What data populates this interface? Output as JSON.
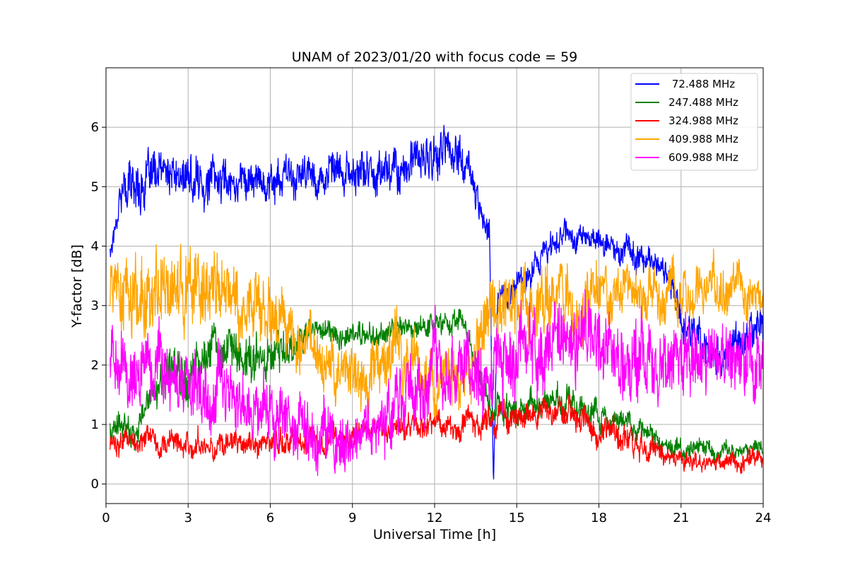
{
  "chart_data": {
    "type": "line",
    "title": "UNAM of 2023/01/20 with focus code = 59",
    "xlabel": "Universal Time [h]",
    "ylabel": "Y-factor [dB]",
    "xlim": [
      0,
      24
    ],
    "ylim": [
      -0.33,
      7.0
    ],
    "xticks": [
      0,
      3,
      6,
      9,
      12,
      15,
      18,
      21,
      24
    ],
    "yticks": [
      0,
      1,
      2,
      3,
      4,
      5,
      6
    ],
    "grid": true,
    "legend_position": "top-right",
    "series": [
      {
        "name": "72.488 MHz",
        "legend_label": " 72.488 MHz",
        "color": "#0000ff",
        "x": [
          0.15,
          0.3,
          0.5,
          0.8,
          1.5,
          2.0,
          3.0,
          4.0,
          5.0,
          6.0,
          7.0,
          8.0,
          9.0,
          10.0,
          11.0,
          12.0,
          12.5,
          13.0,
          13.2,
          13.5,
          13.8,
          14.0,
          14.15,
          14.3,
          16.8,
          17.0,
          17.5,
          18.0,
          18.5,
          19.0,
          19.5,
          20.0,
          20.5,
          21.0,
          21.5,
          22.0,
          22.5,
          23.0,
          23.5,
          24.0
        ],
        "y": [
          3.9,
          4.3,
          4.9,
          5.0,
          5.1,
          5.2,
          5.1,
          5.1,
          5.15,
          5.1,
          5.15,
          5.2,
          5.2,
          5.3,
          5.35,
          5.5,
          5.6,
          5.5,
          5.3,
          4.9,
          4.6,
          4.3,
          0.0,
          3.0,
          4.3,
          4.2,
          4.15,
          4.1,
          4.0,
          3.9,
          3.8,
          3.7,
          3.6,
          2.9,
          2.5,
          2.2,
          2.1,
          2.2,
          2.5,
          2.8
        ],
        "noise": [
          0.3,
          0.3,
          0.4,
          0.5,
          0.45,
          0.45,
          0.45,
          0.45,
          0.4,
          0.4,
          0.4,
          0.4,
          0.4,
          0.45,
          0.45,
          0.5,
          0.5,
          0.5,
          0.4,
          0.35,
          0.35,
          0.3,
          0.0,
          0.3,
          0.3,
          0.3,
          0.25,
          0.25,
          0.3,
          0.3,
          0.3,
          0.25,
          0.3,
          0.4,
          0.4,
          0.4,
          0.35,
          0.4,
          0.4,
          0.4
        ]
      },
      {
        "name": "247.488 MHz",
        "legend_label": "247.488 MHz",
        "color": "#008000",
        "x": [
          0.15,
          1.0,
          2.0,
          3.0,
          4.0,
          5.0,
          6.0,
          7.0,
          7.5,
          8.0,
          9.0,
          10.0,
          11.0,
          12.0,
          13.0,
          14.0,
          15.0,
          16.0,
          17.0,
          18.0,
          19.0,
          20.0,
          21.0,
          22.0,
          23.0,
          24.0
        ],
        "y": [
          0.9,
          0.9,
          1.8,
          2.0,
          2.3,
          2.1,
          2.2,
          2.4,
          2.55,
          2.55,
          2.5,
          2.5,
          2.6,
          2.7,
          2.75,
          1.2,
          1.3,
          1.4,
          1.35,
          1.1,
          1.0,
          0.8,
          0.6,
          0.55,
          0.55,
          0.6
        ],
        "noise": [
          0.3,
          0.3,
          0.5,
          0.5,
          0.5,
          0.5,
          0.5,
          0.35,
          0.25,
          0.25,
          0.25,
          0.25,
          0.25,
          0.25,
          0.25,
          0.3,
          0.3,
          0.3,
          0.3,
          0.25,
          0.25,
          0.2,
          0.2,
          0.2,
          0.15,
          0.15
        ]
      },
      {
        "name": "324.988 MHz",
        "legend_label": "324.988 MHz",
        "color": "#ff0000",
        "x": [
          0.15,
          1.0,
          2.0,
          3.0,
          4.0,
          5.0,
          6.0,
          7.0,
          8.0,
          9.0,
          10.0,
          11.0,
          12.0,
          13.0,
          14.0,
          15.0,
          16.0,
          17.0,
          18.0,
          19.0,
          20.0,
          21.0,
          22.0,
          23.0,
          24.0
        ],
        "y": [
          0.7,
          0.7,
          0.7,
          0.7,
          0.65,
          0.65,
          0.7,
          0.75,
          0.8,
          0.85,
          0.9,
          0.95,
          1.0,
          1.0,
          1.1,
          1.15,
          1.2,
          1.15,
          0.9,
          0.75,
          0.55,
          0.4,
          0.35,
          0.35,
          0.4
        ],
        "noise": [
          0.25,
          0.25,
          0.25,
          0.25,
          0.25,
          0.25,
          0.25,
          0.25,
          0.25,
          0.25,
          0.25,
          0.25,
          0.25,
          0.25,
          0.3,
          0.3,
          0.3,
          0.3,
          0.3,
          0.3,
          0.25,
          0.2,
          0.2,
          0.2,
          0.2
        ]
      },
      {
        "name": "409.988 MHz",
        "legend_label": "409.988 MHz",
        "color": "#ffa500",
        "x": [
          0.15,
          1.0,
          2.0,
          3.0,
          4.0,
          5.0,
          6.0,
          6.5,
          7.0,
          8.0,
          9.0,
          9.5,
          10.0,
          10.5,
          11.0,
          12.0,
          13.0,
          14.0,
          15.0,
          16.0,
          17.0,
          18.0,
          19.0,
          20.0,
          21.0,
          22.0,
          23.0,
          24.0
        ],
        "y": [
          3.2,
          3.1,
          3.2,
          3.3,
          3.2,
          3.1,
          2.8,
          2.5,
          2.3,
          2.0,
          1.9,
          1.8,
          2.0,
          2.4,
          2.1,
          1.6,
          1.8,
          2.9,
          3.0,
          3.1,
          3.15,
          3.3,
          3.2,
          3.1,
          3.3,
          3.4,
          3.3,
          3.0
        ],
        "noise": [
          0.7,
          0.8,
          0.8,
          0.8,
          0.8,
          0.8,
          0.7,
          0.7,
          0.7,
          0.6,
          0.6,
          0.6,
          0.7,
          0.8,
          0.6,
          0.6,
          0.6,
          0.7,
          0.7,
          0.7,
          0.7,
          0.6,
          0.5,
          0.5,
          0.5,
          0.5,
          0.5,
          0.5
        ]
      },
      {
        "name": "609.988 MHz",
        "legend_label": "609.988 MHz",
        "color": "#ff00ff",
        "x": [
          0.15,
          1.0,
          2.0,
          3.0,
          4.0,
          5.0,
          6.0,
          7.0,
          8.0,
          9.0,
          10.0,
          11.0,
          12.0,
          13.0,
          14.0,
          15.0,
          16.0,
          17.0,
          18.0,
          19.0,
          20.0,
          21.0,
          22.0,
          23.0,
          24.0
        ],
        "y": [
          2.2,
          2.0,
          2.1,
          1.6,
          1.5,
          1.4,
          1.2,
          1.0,
          0.8,
          0.7,
          0.9,
          1.8,
          1.9,
          1.7,
          2.0,
          2.3,
          2.3,
          2.3,
          2.2,
          2.1,
          1.9,
          2.2,
          2.2,
          2.2,
          2.2
        ],
        "noise": [
          0.7,
          0.7,
          0.7,
          0.7,
          0.7,
          0.7,
          0.7,
          0.7,
          0.7,
          0.6,
          0.7,
          0.7,
          0.7,
          0.7,
          0.8,
          0.8,
          0.8,
          0.8,
          0.8,
          0.8,
          0.8,
          0.8,
          0.8,
          0.8,
          0.8
        ]
      }
    ]
  }
}
